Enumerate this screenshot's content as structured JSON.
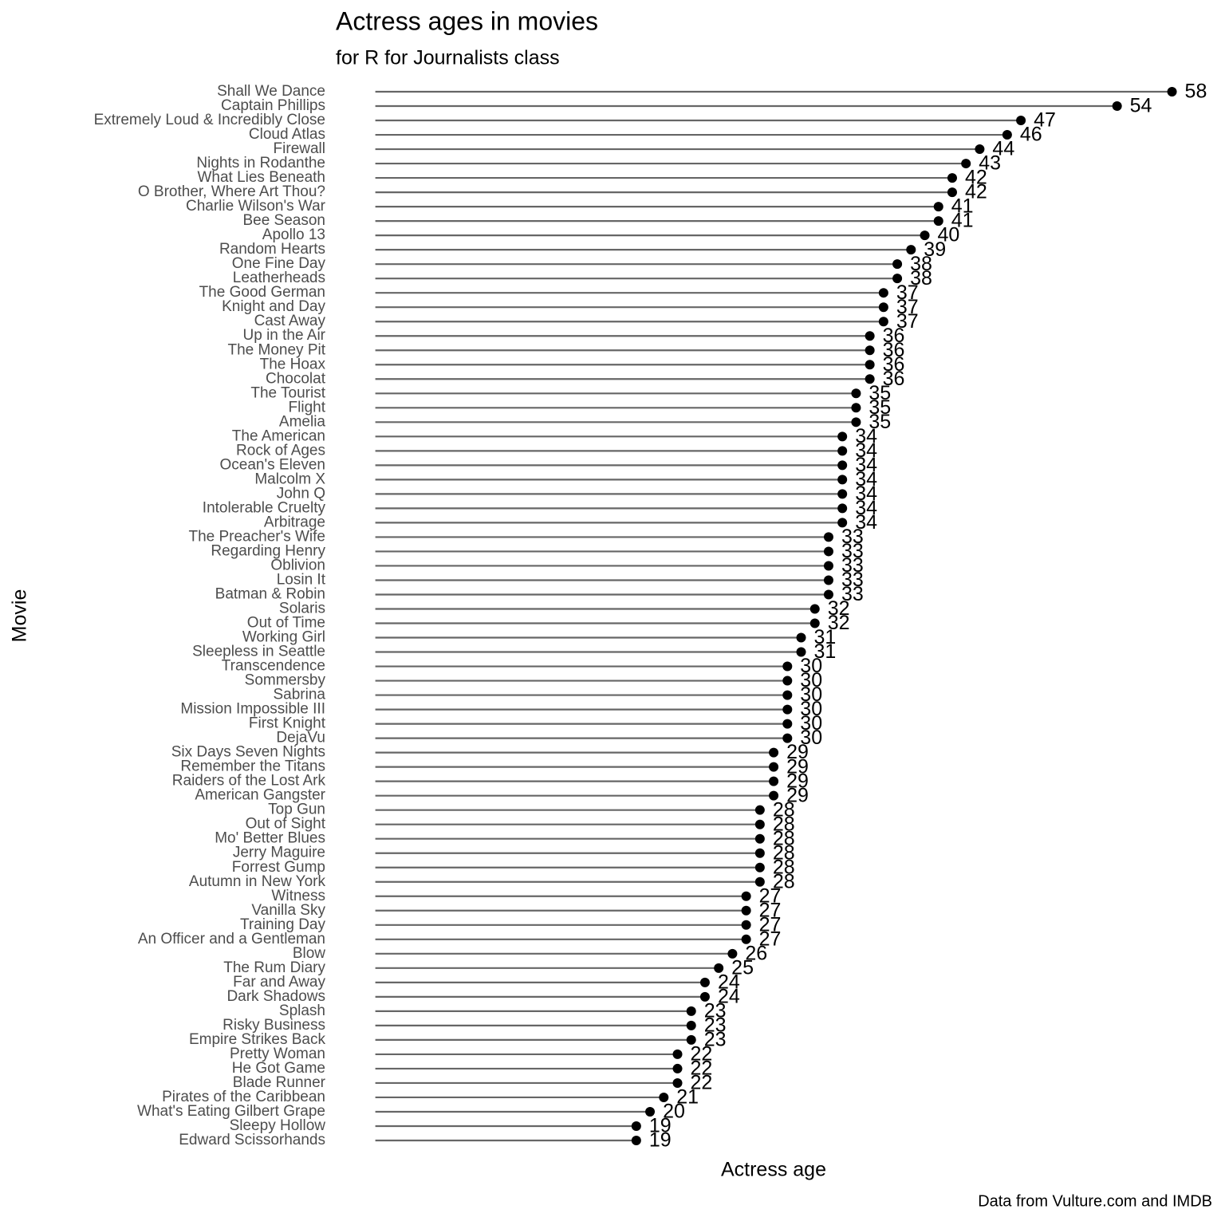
{
  "chart_data": {
    "type": "lollipop",
    "title": "Actress ages in movies",
    "subtitle": "for R for Journalists class",
    "x_label": "Actress age",
    "y_label": "Movie",
    "caption": "Data from Vulture.com and IMDB",
    "segment_color": "#666666",
    "color": "#000000",
    "xlim": [
      0,
      60
    ],
    "categories": [
      "Shall We Dance",
      "Captain Phillips",
      "Extremely Loud & Incredibly Close",
      "Cloud Atlas",
      "Firewall",
      "Nights in Rodanthe",
      "What Lies Beneath",
      "O Brother, Where Art Thou?",
      "Charlie Wilson's War",
      "Bee Season",
      "Apollo 13",
      "Random Hearts",
      "One Fine Day",
      "Leatherheads",
      "The Good German",
      "Knight and Day",
      "Cast Away",
      "Up in the Air",
      "The Money Pit",
      "The Hoax",
      "Chocolat",
      "The Tourist",
      "Flight",
      "Amelia",
      "The American",
      "Rock of Ages",
      "Ocean's Eleven",
      "Malcolm X",
      "John Q",
      "Intolerable Cruelty",
      "Arbitrage",
      "The Preacher's Wife",
      "Regarding Henry",
      "Oblivion",
      "Losin It",
      "Batman & Robin",
      "Solaris",
      "Out of Time",
      "Working Girl",
      "Sleepless in Seattle",
      "Transcendence",
      "Sommersby",
      "Sabrina",
      "Mission Impossible III",
      "First Knight",
      "DejaVu",
      "Six Days Seven Nights",
      "Remember the Titans",
      "Raiders of the Lost Ark",
      "American Gangster",
      "Top Gun",
      "Out of Sight",
      "Mo' Better Blues",
      "Jerry Maguire",
      "Forrest Gump",
      "Autumn in New York",
      "Witness",
      "Vanilla Sky",
      "Training Day",
      "An Officer and a Gentleman",
      "Blow",
      "The Rum Diary",
      "Far and Away",
      "Dark Shadows",
      "Splash",
      "Risky Business",
      "Empire Strikes Back",
      "Pretty Woman",
      "He Got Game",
      "Blade Runner",
      "Pirates of the Caribbean",
      "What's Eating Gilbert Grape",
      "Sleepy Hollow",
      "Edward Scissorhands"
    ],
    "values": [
      58,
      54,
      47,
      46,
      44,
      43,
      42,
      42,
      41,
      41,
      40,
      39,
      38,
      38,
      37,
      37,
      37,
      36,
      36,
      36,
      36,
      35,
      35,
      35,
      34,
      34,
      34,
      34,
      34,
      34,
      34,
      33,
      33,
      33,
      33,
      33,
      32,
      32,
      31,
      31,
      30,
      30,
      30,
      30,
      30,
      30,
      29,
      29,
      29,
      29,
      28,
      28,
      28,
      28,
      28,
      28,
      27,
      27,
      27,
      27,
      26,
      25,
      24,
      24,
      23,
      23,
      23,
      22,
      22,
      22,
      21,
      20,
      19,
      19
    ]
  }
}
